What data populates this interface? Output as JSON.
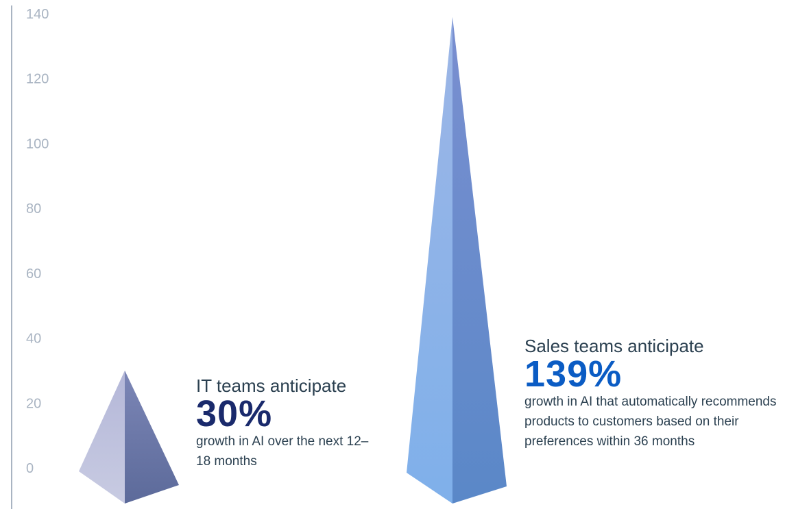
{
  "chart_data": {
    "type": "bar",
    "ylim": [
      0,
      140
    ],
    "yticks": [
      0,
      20,
      40,
      60,
      80,
      100,
      120,
      140
    ],
    "series": [
      {
        "category": "IT teams",
        "value": 30,
        "lead": "IT teams anticipate",
        "value_label": "30%",
        "description": "growth in AI over the next 12–18 months",
        "color": "#1a2a6c",
        "light": "#c4c6e0",
        "dark": "#5d6c9c"
      },
      {
        "category": "Sales teams",
        "value": 139,
        "lead": "Sales teams anticipate",
        "value_label": "139%",
        "description": "growth in AI that automatically recommends products to customers based on their preferences within 36 months",
        "color": "#0b5cc4",
        "light": "#8fb6ea",
        "dark": "#5e86c4"
      }
    ]
  }
}
